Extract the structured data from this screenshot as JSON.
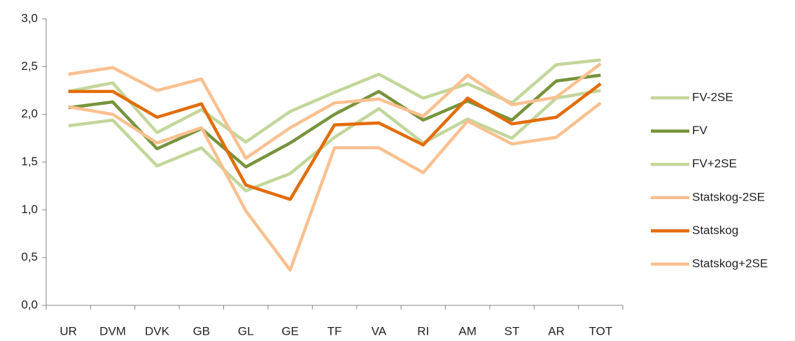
{
  "chart_data": {
    "type": "line",
    "categories": [
      "UR",
      "DVM",
      "DVK",
      "GB",
      "GL",
      "GE",
      "TF",
      "VA",
      "RI",
      "AM",
      "ST",
      "AR",
      "TOT"
    ],
    "series": [
      {
        "name": "FV-2SE",
        "color": "#c3d69b",
        "values": [
          1.88,
          1.94,
          1.46,
          1.65,
          1.2,
          1.38,
          1.76,
          2.06,
          1.7,
          1.95,
          1.75,
          2.17,
          2.25
        ]
      },
      {
        "name": "FV",
        "color": "#77933c",
        "values": [
          2.07,
          2.13,
          1.64,
          1.85,
          1.45,
          1.7,
          2.0,
          2.24,
          1.94,
          2.14,
          1.94,
          2.35,
          2.41
        ]
      },
      {
        "name": "FV+2SE",
        "color": "#c3d69b",
        "values": [
          2.24,
          2.33,
          1.81,
          2.05,
          1.71,
          2.03,
          2.23,
          2.42,
          2.17,
          2.32,
          2.12,
          2.52,
          2.57
        ]
      },
      {
        "name": "Statskog-2SE",
        "color": "#fac090",
        "values": [
          2.08,
          2.0,
          1.7,
          1.86,
          0.99,
          0.37,
          1.65,
          1.65,
          1.39,
          1.93,
          1.69,
          1.76,
          2.12
        ]
      },
      {
        "name": "Statskog",
        "color": "#e36c09",
        "values": [
          2.24,
          2.24,
          1.97,
          2.11,
          1.26,
          1.11,
          1.89,
          1.91,
          1.68,
          2.17,
          1.9,
          1.97,
          2.32
        ]
      },
      {
        "name": "Statskog+2SE",
        "color": "#fac090",
        "values": [
          2.42,
          2.49,
          2.25,
          2.37,
          1.54,
          1.86,
          2.12,
          2.16,
          1.98,
          2.41,
          2.1,
          2.18,
          2.53
        ]
      }
    ],
    "ylim": [
      0,
      3
    ],
    "yticks": [
      {
        "value": 0,
        "label": "0,0"
      },
      {
        "value": 0.5,
        "label": "0,5"
      },
      {
        "value": 1,
        "label": "1,0"
      },
      {
        "value": 1.5,
        "label": "1,5"
      },
      {
        "value": 2,
        "label": "2,0"
      },
      {
        "value": 2.5,
        "label": "2,5"
      },
      {
        "value": 3,
        "label": "3,0"
      }
    ],
    "legend": "right"
  }
}
